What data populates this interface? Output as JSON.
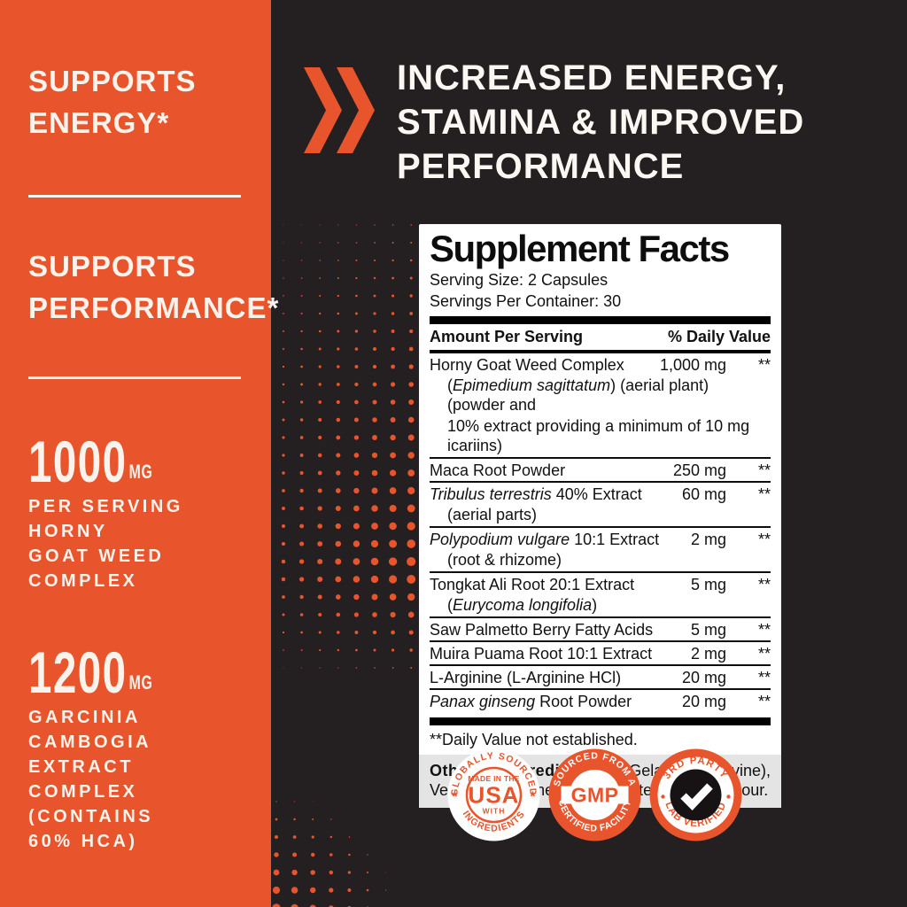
{
  "colors": {
    "orange": "#E8542B",
    "background": "#241F20",
    "cream": "#F8F3EC"
  },
  "sidebar": {
    "benefit1": [
      "SUPPORTS",
      "ENERGY*"
    ],
    "benefit2": [
      "SUPPORTS",
      "PERFORMANCE*"
    ],
    "stat1": {
      "value": "1000",
      "unit": "MG",
      "lines": [
        "PER SERVING",
        "HORNY",
        "GOAT WEED",
        "COMPLEX"
      ]
    },
    "stat2": {
      "value": "1200",
      "unit": "MG",
      "lines": [
        "GARCINIA",
        "CAMBOGIA",
        "EXTRACT",
        "COMPLEX",
        "(CONTAINS",
        "60% HCA)"
      ]
    }
  },
  "headline": {
    "lines": [
      "INCREASED ENERGY,",
      "STAMINA & IMPROVED",
      "PERFORMANCE"
    ]
  },
  "supplement_facts": {
    "title": "Supplement Facts",
    "serving_size": "Serving Size: 2 Capsules",
    "servings_per_container": "Servings Per Container: 30",
    "col_left": "Amount Per Serving",
    "col_right": "% Daily Value",
    "rows": [
      {
        "name_parts": [
          {
            "t": "Horny Goat Weed Complex"
          }
        ],
        "amount": "1,000 mg",
        "dv": "**",
        "subs": [
          [
            {
              "t": "("
            },
            {
              "t": "Epimedium sagittatum",
              "i": true
            },
            {
              "t": ") (aerial plant) (powder and"
            }
          ],
          [
            {
              "t": "10% extract providing a minimum of 10 mg icariins)"
            }
          ]
        ]
      },
      {
        "name_parts": [
          {
            "t": "Maca Root Powder"
          }
        ],
        "amount": "250 mg",
        "dv": "**",
        "subs": []
      },
      {
        "name_parts": [
          {
            "t": "Tribulus terrestris",
            "i": true
          },
          {
            "t": " 40% Extract"
          }
        ],
        "amount": "60 mg",
        "dv": "**",
        "subs": [
          [
            {
              "t": "(aerial parts)"
            }
          ]
        ]
      },
      {
        "name_parts": [
          {
            "t": "Polypodium vulgare",
            "i": true
          },
          {
            "t": " 10:1 Extract"
          }
        ],
        "amount": "2 mg",
        "dv": "**",
        "subs": [
          [
            {
              "t": "(root & rhizome)"
            }
          ]
        ]
      },
      {
        "name_parts": [
          {
            "t": "Tongkat Ali Root 20:1 Extract"
          }
        ],
        "amount": "5 mg",
        "dv": "**",
        "subs": [
          [
            {
              "t": "("
            },
            {
              "t": "Eurycoma longifolia",
              "i": true
            },
            {
              "t": ")"
            }
          ]
        ]
      },
      {
        "name_parts": [
          {
            "t": "Saw Palmetto Berry Fatty Acids"
          }
        ],
        "amount": "5 mg",
        "dv": "**",
        "subs": []
      },
      {
        "name_parts": [
          {
            "t": "Muira Puama Root 10:1 Extract"
          }
        ],
        "amount": "2 mg",
        "dv": "**",
        "subs": []
      },
      {
        "name_parts": [
          {
            "t": "L-Arginine (L-Arginine HCl)"
          }
        ],
        "amount": "20 mg",
        "dv": "**",
        "subs": []
      },
      {
        "name_parts": [
          {
            "t": "Panax ginseng",
            "i": true
          },
          {
            "t": " Root Powder"
          }
        ],
        "amount": "20 mg",
        "dv": "**",
        "subs": []
      }
    ],
    "footnote": "**Daily Value not established.",
    "other_ingredients": {
      "label": "Other Ingredients:",
      "text": "Gelatin (bovine), Vegetable Magnesium Stearate, and Rice Flour."
    }
  },
  "badges": [
    {
      "top": "GLOBALLY SOURCED",
      "bottom": "INGREDIENTS",
      "center_top": "MADE IN THE",
      "center_main": "USA",
      "center_bottom": "WITH",
      "side_symbol": "*"
    },
    {
      "top": "SOURCED FROM A",
      "bottom": "CERTIFIED FACILITY",
      "center_main": "GMP"
    },
    {
      "top": "3RD PARTY",
      "bottom": "LAB VERIFIED",
      "center_icon": "checkmark"
    }
  ]
}
